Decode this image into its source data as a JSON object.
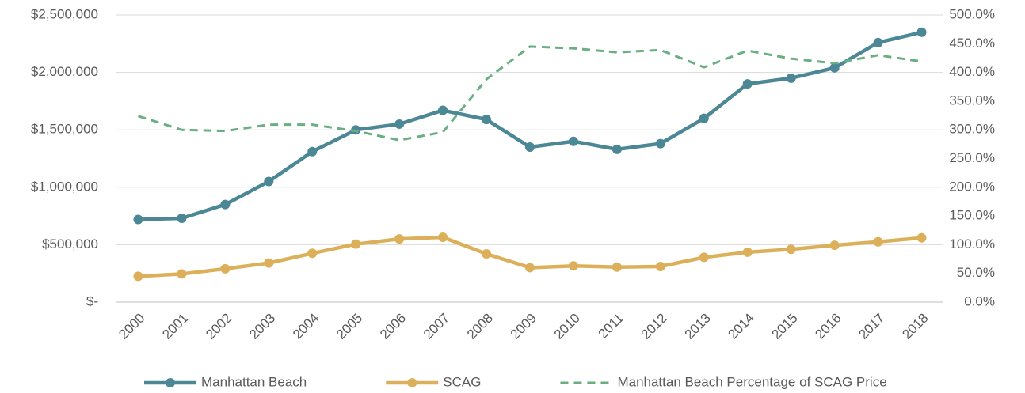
{
  "chart_data": {
    "type": "line",
    "categories": [
      "2000",
      "2001",
      "2002",
      "2003",
      "2004",
      "2005",
      "2006",
      "2007",
      "2008",
      "2009",
      "2010",
      "2011",
      "2012",
      "2013",
      "2014",
      "2015",
      "2016",
      "2017",
      "2018"
    ],
    "series": [
      {
        "name": "Manhattan Beach",
        "color": "#4b8795",
        "marker": true,
        "values": [
          720000,
          730000,
          850000,
          1050000,
          1310000,
          1500000,
          1550000,
          1670000,
          1590000,
          1350000,
          1400000,
          1330000,
          1380000,
          1600000,
          1900000,
          1950000,
          2040000,
          2260000,
          2350000
        ]
      },
      {
        "name": "SCAG",
        "color": "#dcb05a",
        "marker": true,
        "values": [
          225000,
          245000,
          290000,
          340000,
          425000,
          505000,
          550000,
          565000,
          420000,
          300000,
          315000,
          305000,
          310000,
          390000,
          435000,
          460000,
          495000,
          525000,
          560000
        ]
      },
      {
        "name": "Manhattan Beach Percentage of SCAG Price",
        "color": "#6aae82",
        "dashed": true,
        "axis": "y2",
        "values": [
          324,
          300,
          298,
          309,
          309,
          298,
          282,
          296,
          388,
          445,
          442,
          435,
          439,
          409,
          438,
          424,
          416,
          430,
          419
        ]
      }
    ],
    "ylim": [
      0,
      2500000
    ],
    "yticks": [
      {
        "value": 0,
        "label": "$-"
      },
      {
        "value": 500000,
        "label": "$500,000"
      },
      {
        "value": 1000000,
        "label": "$1,000,000"
      },
      {
        "value": 1500000,
        "label": "$1,500,000"
      },
      {
        "value": 2000000,
        "label": "$2,000,000"
      },
      {
        "value": 2500000,
        "label": "$2,500,000"
      }
    ],
    "y2lim": [
      0,
      500
    ],
    "y2ticks": [
      {
        "value": 0,
        "label": "0.0%"
      },
      {
        "value": 50,
        "label": "50.0%"
      },
      {
        "value": 100,
        "label": "100.0%"
      },
      {
        "value": 150,
        "label": "150.0%"
      },
      {
        "value": 200,
        "label": "200.0%"
      },
      {
        "value": 250,
        "label": "250.0%"
      },
      {
        "value": 300,
        "label": "300.0%"
      },
      {
        "value": 350,
        "label": "350.0%"
      },
      {
        "value": 400,
        "label": "400.0%"
      },
      {
        "value": 450,
        "label": "450.0%"
      },
      {
        "value": 500,
        "label": "500.0%"
      }
    ],
    "grid": true,
    "legend": "bottom"
  }
}
